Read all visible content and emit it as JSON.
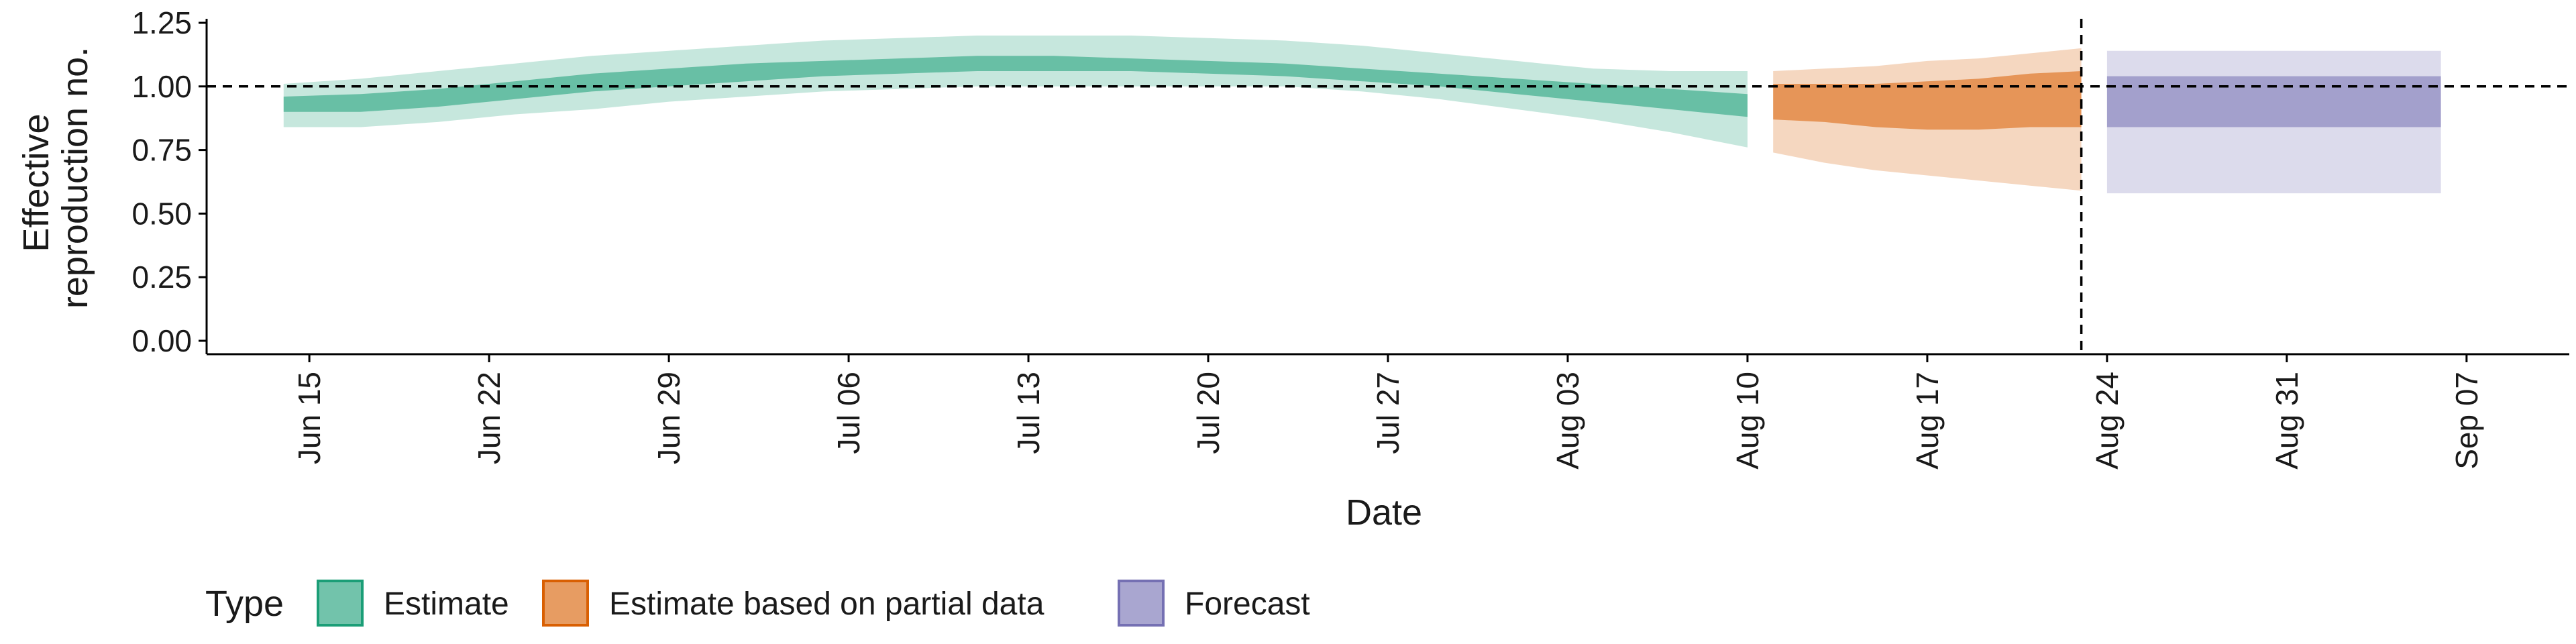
{
  "chart_data": {
    "type": "area",
    "xlabel": "Date",
    "ylabel_lines": [
      "Effective",
      "reproduction no."
    ],
    "x_type": "date",
    "xlim": [
      "2020-06-11",
      "2020-09-11"
    ],
    "ylim": [
      0,
      1.25
    ],
    "yticks": [
      0.0,
      0.25,
      0.5,
      0.75,
      1.0,
      1.25
    ],
    "ytick_labels": [
      "0.00",
      "0.25",
      "0.50",
      "0.75",
      "1.00",
      "1.25"
    ],
    "xticks": [
      {
        "date": "2020-06-15",
        "label": "Jun 15"
      },
      {
        "date": "2020-06-22",
        "label": "Jun 22"
      },
      {
        "date": "2020-06-29",
        "label": "Jun 29"
      },
      {
        "date": "2020-07-06",
        "label": "Jul 06"
      },
      {
        "date": "2020-07-13",
        "label": "Jul 13"
      },
      {
        "date": "2020-07-20",
        "label": "Jul 20"
      },
      {
        "date": "2020-07-27",
        "label": "Jul 27"
      },
      {
        "date": "2020-08-03",
        "label": "Aug 03"
      },
      {
        "date": "2020-08-10",
        "label": "Aug 10"
      },
      {
        "date": "2020-08-17",
        "label": "Aug 17"
      },
      {
        "date": "2020-08-24",
        "label": "Aug 24"
      },
      {
        "date": "2020-08-31",
        "label": "Aug 31"
      },
      {
        "date": "2020-09-07",
        "label": "Sep 07"
      }
    ],
    "reference_hline": 1.0,
    "reference_vline": "2020-08-23",
    "grid": false,
    "legend": {
      "title": "Type",
      "position": "bottom-left",
      "entries": [
        {
          "label": "Estimate",
          "fill": "#1b9e77",
          "border": "#1b9e77"
        },
        {
          "label": "Estimate based on partial data",
          "fill": "#d95f02",
          "border": "#d95f02"
        },
        {
          "label": "Forecast",
          "fill": "#7570b3",
          "border": "#7570b3"
        }
      ]
    },
    "series": [
      {
        "type_name": "Estimate",
        "color": "#1b9e77",
        "x": [
          "2020-06-14",
          "2020-06-17",
          "2020-06-20",
          "2020-06-23",
          "2020-06-26",
          "2020-06-29",
          "2020-07-02",
          "2020-07-05",
          "2020-07-08",
          "2020-07-11",
          "2020-07-14",
          "2020-07-17",
          "2020-07-20",
          "2020-07-23",
          "2020-07-26",
          "2020-07-29",
          "2020-08-01",
          "2020-08-04",
          "2020-08-07",
          "2020-08-10"
        ],
        "lower_90": [
          0.84,
          0.84,
          0.86,
          0.89,
          0.91,
          0.94,
          0.96,
          0.98,
          0.99,
          1.0,
          1.0,
          1.0,
          1.0,
          1.0,
          0.98,
          0.95,
          0.91,
          0.87,
          0.82,
          0.76
        ],
        "upper_90": [
          1.01,
          1.03,
          1.06,
          1.09,
          1.12,
          1.14,
          1.16,
          1.18,
          1.19,
          1.2,
          1.2,
          1.2,
          1.19,
          1.18,
          1.16,
          1.13,
          1.1,
          1.07,
          1.06,
          1.06
        ],
        "lower_50": [
          0.9,
          0.9,
          0.92,
          0.95,
          0.98,
          1.0,
          1.02,
          1.04,
          1.05,
          1.06,
          1.06,
          1.06,
          1.05,
          1.04,
          1.02,
          1.0,
          0.97,
          0.94,
          0.91,
          0.88
        ],
        "upper_50": [
          0.96,
          0.97,
          0.99,
          1.02,
          1.05,
          1.07,
          1.09,
          1.1,
          1.11,
          1.12,
          1.12,
          1.11,
          1.1,
          1.09,
          1.07,
          1.05,
          1.03,
          1.01,
          0.99,
          0.97
        ]
      },
      {
        "type_name": "Estimate based on partial data",
        "color": "#d95f02",
        "x": [
          "2020-08-11",
          "2020-08-13",
          "2020-08-15",
          "2020-08-17",
          "2020-08-19",
          "2020-08-21",
          "2020-08-23"
        ],
        "lower_90": [
          0.74,
          0.7,
          0.67,
          0.65,
          0.63,
          0.61,
          0.59
        ],
        "upper_90": [
          1.06,
          1.07,
          1.08,
          1.1,
          1.11,
          1.13,
          1.15
        ],
        "lower_50": [
          0.87,
          0.86,
          0.84,
          0.83,
          0.83,
          0.84,
          0.84
        ],
        "upper_50": [
          1.01,
          1.01,
          1.01,
          1.02,
          1.03,
          1.05,
          1.06
        ]
      },
      {
        "type_name": "Forecast",
        "color": "#7570b3",
        "x": [
          "2020-08-24",
          "2020-09-06"
        ],
        "lower_90": [
          0.58,
          0.58
        ],
        "upper_90": [
          1.14,
          1.14
        ],
        "lower_50": [
          0.84,
          0.84
        ],
        "upper_50": [
          1.04,
          1.04
        ]
      }
    ]
  }
}
